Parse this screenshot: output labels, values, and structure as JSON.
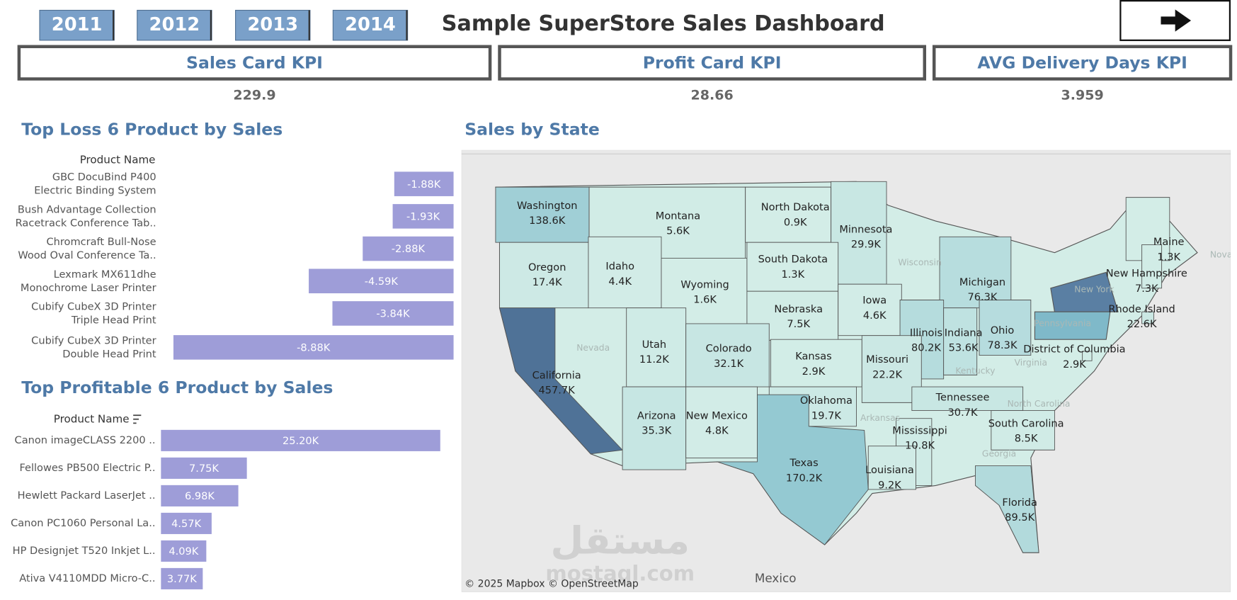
{
  "header": {
    "years": [
      "2011",
      "2012",
      "2013",
      "2014"
    ],
    "title": "Sample SuperStore Sales Dashboard"
  },
  "kpis": [
    {
      "title": "Sales Card KPI",
      "value": 229.9
    },
    {
      "title": "Profit Card KPI",
      "value": 28.66
    },
    {
      "title": "AVG Delivery Days KPI",
      "value": 3.959
    }
  ],
  "chart_data": [
    {
      "type": "hbar",
      "title": "Top Loss 6 Product by Sales",
      "category_label": "Product Name",
      "categories": [
        [
          "GBC DocuBind P400",
          "Electric Binding System"
        ],
        [
          "Bush Advantage Collection",
          "Racetrack Conference Tab.."
        ],
        [
          "Chromcraft Bull-Nose",
          "Wood Oval Conference Ta.."
        ],
        [
          "Lexmark MX611dhe",
          "Monochrome Laser Printer"
        ],
        [
          "Cubify CubeX 3D Printer",
          "Triple Head Print"
        ],
        [
          "Cubify CubeX 3D Printer",
          "Double Head Print"
        ]
      ],
      "values": [
        -1880,
        -1930,
        -2880,
        -4590,
        -3840,
        -8880
      ],
      "value_labels": [
        "-1.88K",
        "-1.93K",
        "-2.88K",
        "-4.59K",
        "-3.84K",
        "-8.88K"
      ],
      "color": "#9e9dd8",
      "xlim": [
        -9300,
        0
      ]
    },
    {
      "type": "hbar",
      "title": "Top Profitable 6 Product by Sales",
      "category_label": "Product Name",
      "categories": [
        "Canon imageCLASS 2200 ..",
        "Fellowes PB500 Electric P..",
        "Hewlett Packard LaserJet ..",
        "Canon PC1060 Personal La..",
        "HP Designjet T520 Inkjet L..",
        "Ativa V4110MDD Micro-C.."
      ],
      "values": [
        25200,
        7750,
        6980,
        4570,
        4090,
        3770
      ],
      "value_labels": [
        "25.20K",
        "7.75K",
        "6.98K",
        "4.57K",
        "4.09K",
        "3.77K"
      ],
      "color": "#9e9dd8",
      "xlim": [
        0,
        26400
      ]
    },
    {
      "type": "choropleth",
      "title": "Sales by State",
      "categories": [
        "Washington",
        "Montana",
        "North Dakota",
        "Minnesota",
        "Maine",
        "Oregon",
        "Idaho",
        "Wyoming",
        "South Dakota",
        "New Hampshire",
        "Michigan",
        "Nebraska",
        "Iowa",
        "Rhode Island",
        "Utah",
        "Colorado",
        "Kansas",
        "Illinois",
        "Indiana",
        "Ohio",
        "District of Columbia",
        "California",
        "Missouri",
        "Tennessee",
        "Arizona",
        "New Mexico",
        "Oklahoma",
        "South Carolina",
        "Mississippi",
        "Texas",
        "Louisiana",
        "Florida"
      ],
      "values": [
        138600,
        5600,
        900,
        29900,
        1300,
        17400,
        4400,
        1600,
        1300,
        7300,
        76300,
        7500,
        4600,
        22600,
        11200,
        32100,
        2900,
        80200,
        53600,
        78300,
        2900,
        457700,
        22200,
        30700,
        35300,
        4800,
        19700,
        8500,
        10800,
        170200,
        9200,
        89500
      ],
      "value_labels": [
        "138.6K",
        "5.6K",
        "0.9K",
        "29.9K",
        "1.3K",
        "17.4K",
        "4.4K",
        "1.6K",
        "1.3K",
        "7.3K",
        "76.3K",
        "7.5K",
        "4.6K",
        "22.6K",
        "11.2K",
        "32.1K",
        "2.9K",
        "80.2K",
        "53.6K",
        "78.3K",
        "2.9K",
        "457.7K",
        "22.2K",
        "30.7K",
        "35.3K",
        "4.8K",
        "19.7K",
        "8.5K",
        "10.8K",
        "170.2K",
        "9.2K",
        "89.5K"
      ],
      "color_range": [
        "#d3ede7",
        "#7ebccb",
        "#4f7297"
      ],
      "basemap_labels": [
        "Nevada",
        "Wisconsin",
        "New York",
        "Pennsylvania",
        "Kentucky",
        "Virginia",
        "North Carolina",
        "Georgia",
        "Arkansas",
        "Nova",
        "Mexico"
      ],
      "attribution": "© 2025 Mapbox © OpenStreetMap",
      "watermark": [
        "مستقل",
        "mostaql.com"
      ]
    }
  ]
}
